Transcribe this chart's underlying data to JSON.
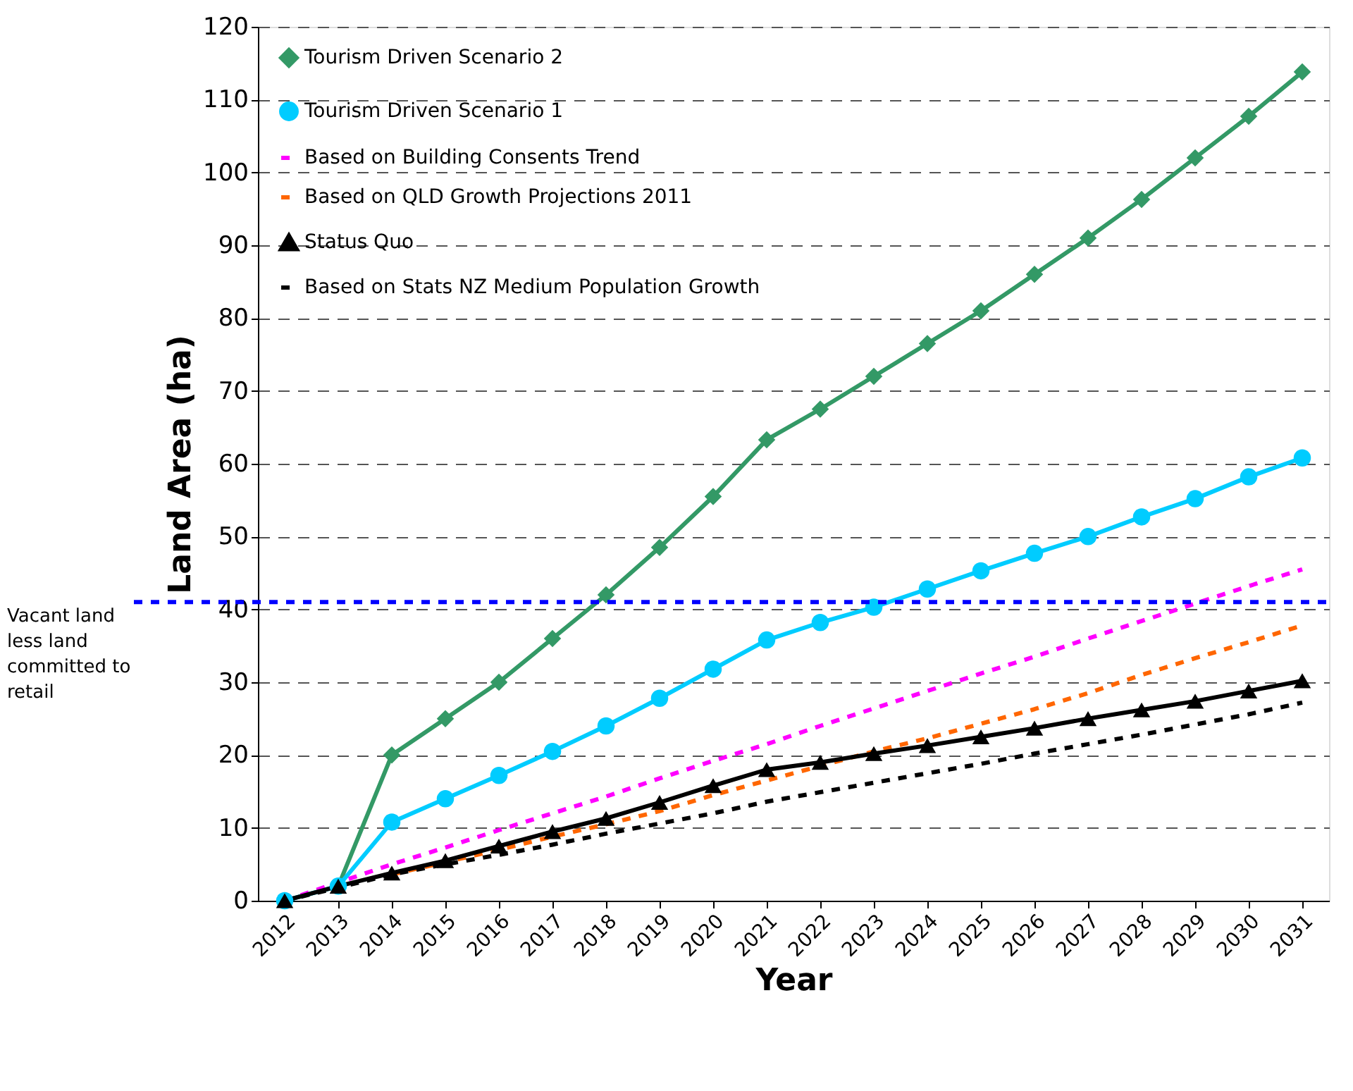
{
  "chart_data": {
    "type": "line",
    "xlabel": "Year",
    "ylabel": "Land Area (ha)",
    "categories": [
      "2012",
      "2013",
      "2014",
      "2015",
      "2016",
      "2017",
      "2018",
      "2019",
      "2020",
      "2021",
      "2022",
      "2023",
      "2024",
      "2025",
      "2026",
      "2027",
      "2028",
      "2029",
      "2030",
      "2031"
    ],
    "series": [
      {
        "name": "Tourism Driven Scenario 2",
        "color": "#339966",
        "marker": "diamond",
        "line_style": "solid",
        "values": [
          0,
          2,
          20,
          25,
          30,
          36,
          42,
          48.5,
          55.5,
          63.3,
          67.5,
          72,
          76.5,
          81,
          86,
          91,
          96.3,
          102,
          107.7,
          113.8
        ]
      },
      {
        "name": "Tourism Driven Scenario 1",
        "color": "#00ccff",
        "marker": "circle",
        "line_style": "solid",
        "values": [
          0,
          2,
          10.8,
          14,
          17.2,
          20.5,
          24,
          27.8,
          31.8,
          35.8,
          38.2,
          40.3,
          42.8,
          45.3,
          47.7,
          50,
          52.7,
          55.2,
          58.2,
          60.8
        ]
      },
      {
        "name": "Based on Building Consents Trend",
        "color": "#ff00ff",
        "marker": "none",
        "line_style": "dashed",
        "values": [
          0,
          2.5,
          5,
          7.3,
          9.7,
          12,
          14.3,
          16.8,
          19.2,
          21.5,
          24,
          26.4,
          28.8,
          31.2,
          33.5,
          36,
          38.4,
          40.8,
          43.2,
          45.5
        ]
      },
      {
        "name": "Based on QLD Growth Projections 2011",
        "color": "#ff6600",
        "marker": "none",
        "line_style": "dashed",
        "values": [
          null,
          null,
          3.6,
          5.3,
          7,
          8.8,
          10.5,
          12.3,
          14.5,
          16.5,
          18.5,
          20.5,
          22.3,
          24.3,
          26.3,
          28.5,
          31,
          33.3,
          35.5,
          37.8
        ]
      },
      {
        "name": "Status Quo",
        "color": "#000000",
        "marker": "triangle",
        "line_style": "solid",
        "values": [
          0,
          2,
          3.8,
          5.5,
          7.5,
          9.5,
          11.3,
          13.5,
          15.8,
          18,
          19,
          20.2,
          21.3,
          22.5,
          23.7,
          25,
          26.2,
          27.4,
          28.8,
          30.2
        ]
      },
      {
        "name": "Based on Stats NZ Medium Population Growth",
        "color": "#000000",
        "marker": "none",
        "line_style": "dashed",
        "values": [
          0,
          1.8,
          3.6,
          5,
          6.3,
          7.7,
          9.2,
          10.6,
          12,
          13.6,
          14.9,
          16.2,
          17.5,
          18.8,
          20.2,
          21.5,
          22.8,
          24.2,
          25.6,
          27.2
        ]
      }
    ],
    "ylim": [
      0,
      120
    ],
    "yticks": [
      0,
      10,
      20,
      30,
      40,
      50,
      60,
      70,
      80,
      90,
      100,
      110,
      120
    ],
    "ref_lines": [
      {
        "axis": "y",
        "value": 41,
        "label": "Vacant land less land committed to retail",
        "color": "#0000ff",
        "line_style": "dashed"
      }
    ],
    "grid": "y",
    "legend": "top left"
  }
}
